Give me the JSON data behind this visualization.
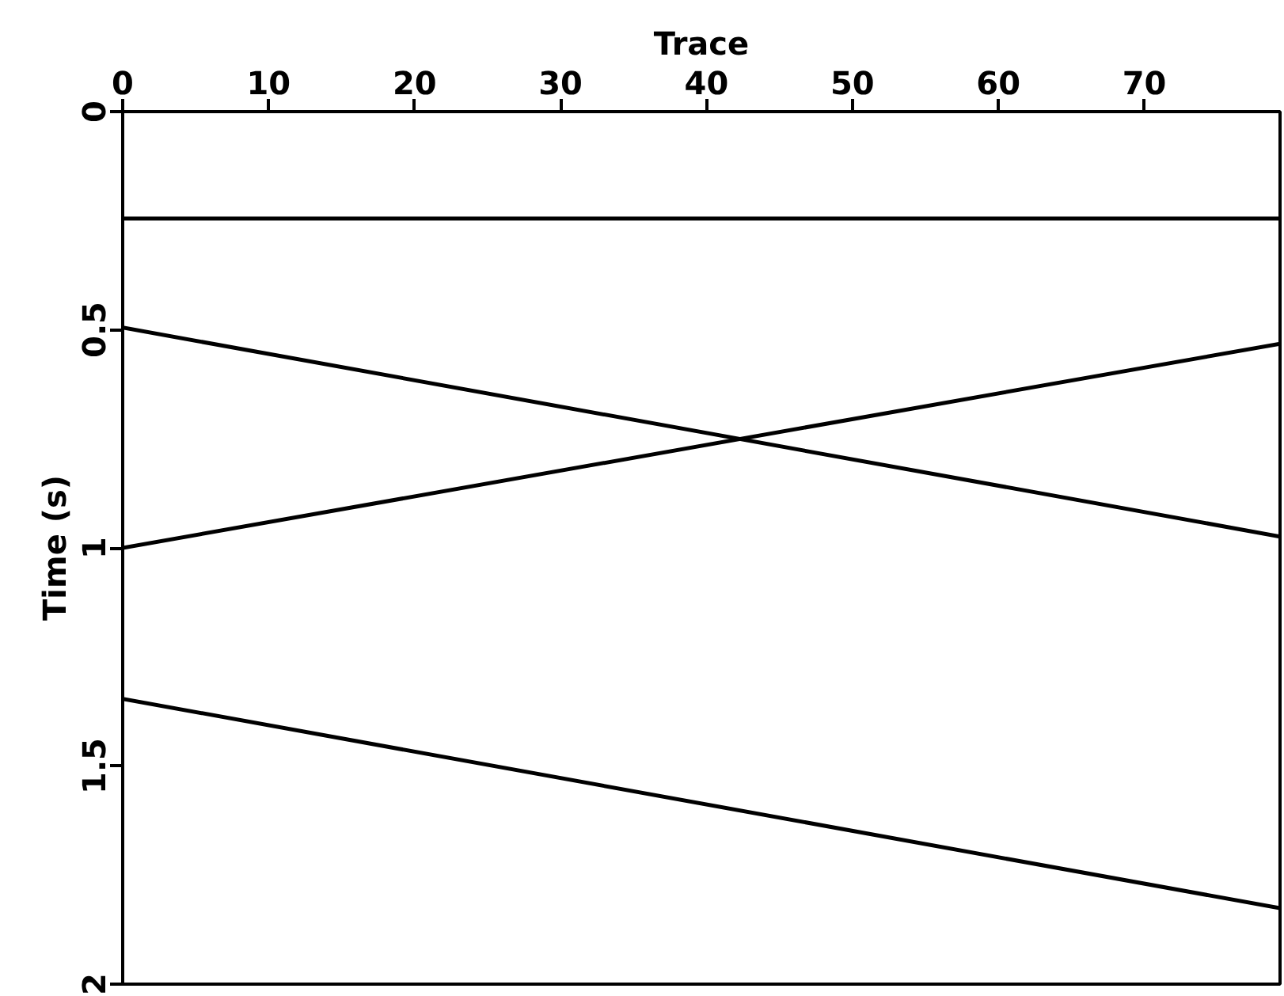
{
  "chart_data": {
    "type": "line",
    "xlabel": "Trace",
    "ylabel": "Time (s)",
    "x": [
      0,
      79.3
    ],
    "series": [
      {
        "color": "#000000",
        "values": [
          0.245,
          0.245
        ]
      },
      {
        "color": "#000000",
        "values": [
          0.495,
          0.974
        ]
      },
      {
        "color": "#000000",
        "values": [
          1.0,
          0.532
        ]
      },
      {
        "color": "#000000",
        "values": [
          1.346,
          1.826
        ]
      }
    ],
    "xlim": [
      0,
      79.3
    ],
    "ylim": [
      2,
      0
    ],
    "xticks": [
      0,
      10,
      20,
      30,
      40,
      50,
      60,
      70
    ],
    "yticks": [
      0,
      0.5,
      1,
      1.5,
      2
    ],
    "grid": false,
    "line_style": "solid"
  }
}
